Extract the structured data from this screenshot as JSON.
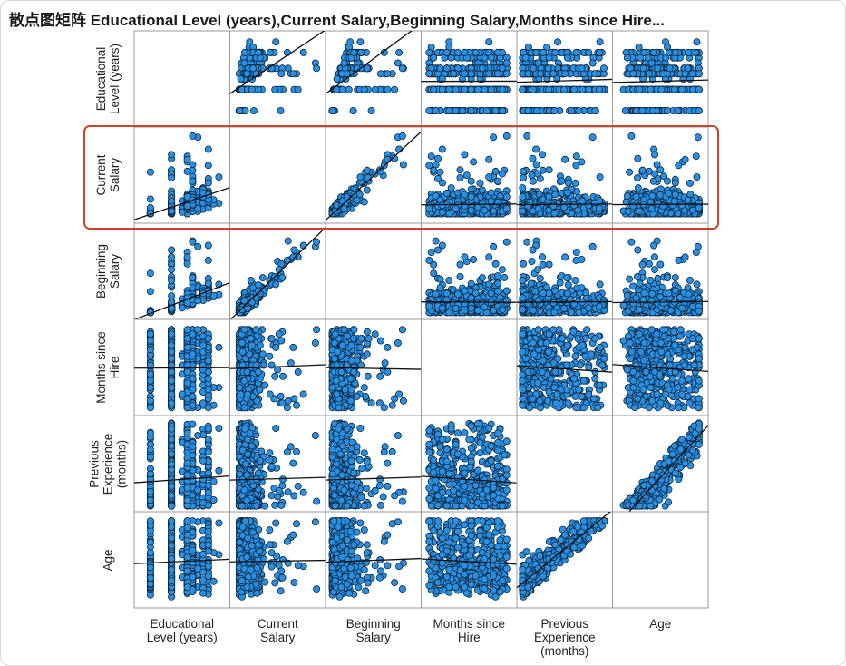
{
  "title": "散点图矩阵 Educational Level (years),Current Salary,Beginning Salary,Months since Hire...",
  "highlight_color": "#c9442c",
  "point_color": "#2a8fe0",
  "point_stroke": "#0b2942",
  "chart_data": {
    "type": "scatter",
    "subtype": "scatter-matrix",
    "variables": [
      {
        "key": "edu",
        "label": "Educational Level (years)",
        "row_label": [
          "Educational",
          "Level (years)"
        ],
        "col_label": [
          "Educational",
          "Level (years)"
        ],
        "range": [
          6,
          22
        ]
      },
      {
        "key": "cur",
        "label": "Current Salary",
        "row_label": [
          "Current",
          "Salary"
        ],
        "col_label": [
          "Current",
          "Salary"
        ],
        "range": [
          10000,
          140000
        ]
      },
      {
        "key": "beg",
        "label": "Beginning Salary",
        "row_label": [
          "Beginning",
          "Salary"
        ],
        "col_label": [
          "Beginning",
          "Salary"
        ],
        "range": [
          8000,
          82000
        ]
      },
      {
        "key": "mon",
        "label": "Months since Hire",
        "row_label": [
          "Months since",
          "Hire"
        ],
        "col_label": [
          "Months since",
          "Hire"
        ],
        "range": [
          62,
          100
        ]
      },
      {
        "key": "exp",
        "label": "Previous Experience (months)",
        "row_label": [
          "Previous",
          "Experience",
          "(months)"
        ],
        "col_label": [
          "Previous",
          "Experience",
          "(months)"
        ],
        "range": [
          0,
          480
        ]
      },
      {
        "key": "age",
        "label": "Age",
        "row_label": [
          "Age"
        ],
        "col_label": [
          "Age"
        ],
        "range": [
          20,
          68
        ]
      }
    ],
    "highlighted_row": "cur",
    "fit_line": true,
    "grid": false,
    "legend": "none",
    "n_points": 474
  }
}
